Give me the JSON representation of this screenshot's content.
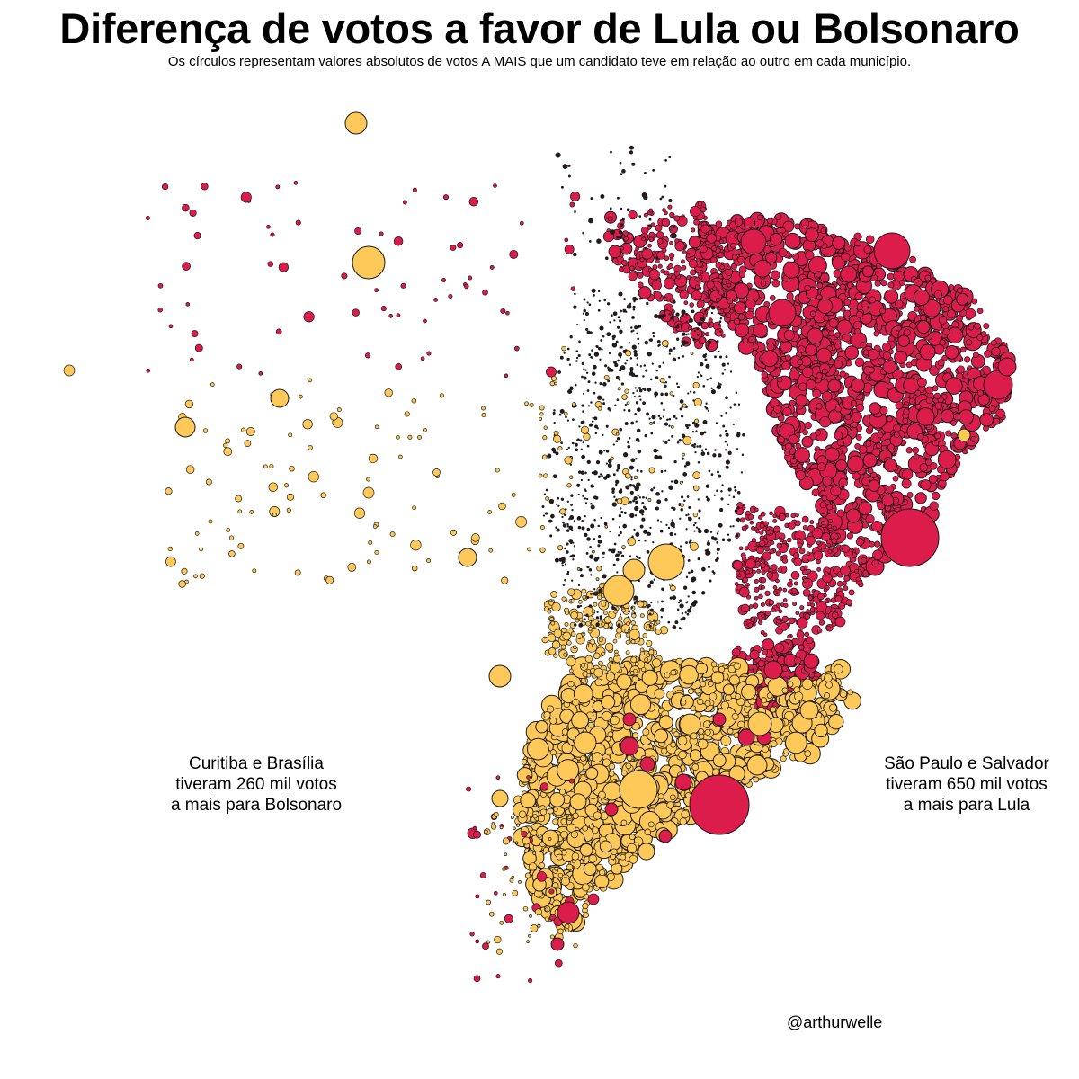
{
  "title": "Diferença de votos a favor de Lula ou Bolsonaro",
  "subtitle": "Os círculos representam valores absolutos de votos A MAIS que um candidato teve em relação ao outro em cada município.",
  "annotations": {
    "left": {
      "line1": "Curitiba e Brasília",
      "line2": "tiveram 260 mil votos",
      "line3": "a mais para Bolsonaro"
    },
    "right": {
      "line1": "São Paulo e Salvador",
      "line2": "tiveram 650 mil votos",
      "line3": "a mais para Lula"
    }
  },
  "credit": "@arthurwelle",
  "colors": {
    "lula": "#dc1c4b",
    "bolsonaro": "#ffc95a",
    "stroke": "#1a1a1a"
  }
}
